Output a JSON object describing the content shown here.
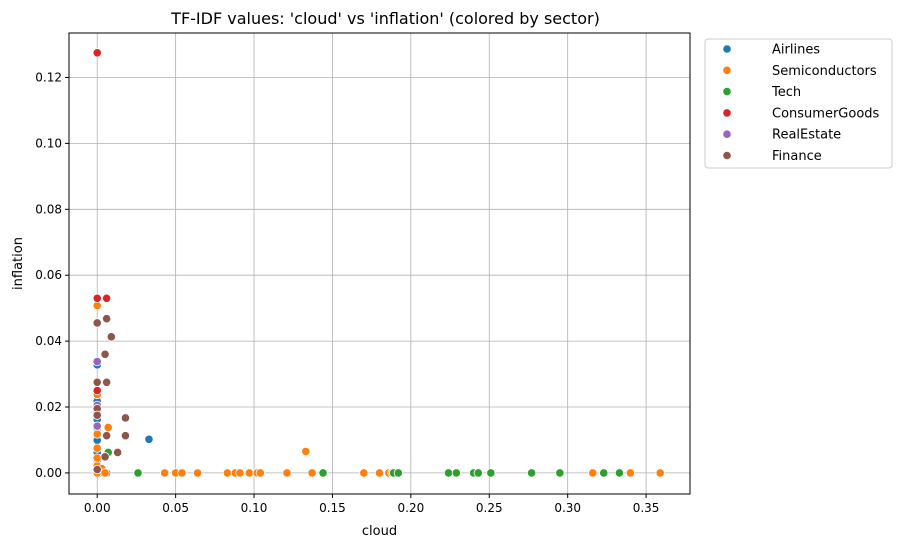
{
  "chart_data": {
    "type": "scatter",
    "title": "TF-IDF values: 'cloud' vs 'inflation' (colored by sector)",
    "xlabel": "cloud",
    "ylabel": "inflation",
    "xlim": [
      -0.018,
      0.378
    ],
    "ylim": [
      -0.0064,
      0.1335
    ],
    "xticks": [
      0.0,
      0.05,
      0.1,
      0.15,
      0.2,
      0.25,
      0.3,
      0.35
    ],
    "xtick_labels": [
      "0.00",
      "0.05",
      "0.10",
      "0.15",
      "0.20",
      "0.25",
      "0.30",
      "0.35"
    ],
    "yticks": [
      0.0,
      0.02,
      0.04,
      0.06,
      0.08,
      0.1,
      0.12
    ],
    "ytick_labels": [
      "0.00",
      "0.02",
      "0.04",
      "0.06",
      "0.08",
      "0.10",
      "0.12"
    ],
    "grid": true,
    "legend_position": "outside top-right",
    "series": [
      {
        "name": "Airlines",
        "color": "#1f77b4",
        "points": [
          [
            0.0,
            0.0
          ],
          [
            0.0,
            0.0
          ],
          [
            0.0,
            0.0
          ],
          [
            0.0,
            0.0021
          ],
          [
            0.0,
            0.0038
          ],
          [
            0.0,
            0.0062
          ],
          [
            0.0,
            0.0099
          ],
          [
            0.0,
            0.0135
          ],
          [
            0.0,
            0.0162
          ],
          [
            0.0,
            0.0218
          ],
          [
            0.0,
            0.0328
          ],
          [
            0.002,
            0.0
          ],
          [
            0.004,
            0.0
          ],
          [
            0.006,
            0.0
          ],
          [
            0.033,
            0.0102
          ]
        ]
      },
      {
        "name": "Semiconductors",
        "color": "#ff7f0e",
        "points": [
          [
            0.0,
            0.0
          ],
          [
            0.0,
            0.0022
          ],
          [
            0.0,
            0.0045
          ],
          [
            0.0,
            0.0075
          ],
          [
            0.0,
            0.0118
          ],
          [
            0.0,
            0.0238
          ],
          [
            0.0,
            0.0508
          ],
          [
            0.003,
            0.0013
          ],
          [
            0.005,
            0.0
          ],
          [
            0.007,
            0.0138
          ],
          [
            0.043,
            0.0
          ],
          [
            0.05,
            0.0
          ],
          [
            0.054,
            0.0
          ],
          [
            0.064,
            0.0
          ],
          [
            0.083,
            0.0
          ],
          [
            0.088,
            0.0
          ],
          [
            0.091,
            0.0
          ],
          [
            0.097,
            0.0
          ],
          [
            0.102,
            0.0
          ],
          [
            0.104,
            0.0
          ],
          [
            0.121,
            0.0
          ],
          [
            0.133,
            0.0065
          ],
          [
            0.137,
            0.0
          ],
          [
            0.17,
            0.0
          ],
          [
            0.18,
            0.0
          ],
          [
            0.186,
            0.0
          ],
          [
            0.188,
            0.0
          ],
          [
            0.316,
            0.0
          ],
          [
            0.34,
            0.0
          ],
          [
            0.359,
            0.0
          ]
        ]
      },
      {
        "name": "Tech",
        "color": "#2ca02c",
        "points": [
          [
            0.007,
            0.0062
          ],
          [
            0.026,
            0.0
          ],
          [
            0.144,
            0.0
          ],
          [
            0.189,
            0.0
          ],
          [
            0.192,
            0.0
          ],
          [
            0.224,
            0.0
          ],
          [
            0.229,
            0.0
          ],
          [
            0.24,
            0.0
          ],
          [
            0.243,
            0.0
          ],
          [
            0.251,
            0.0
          ],
          [
            0.277,
            0.0
          ],
          [
            0.295,
            0.0
          ],
          [
            0.323,
            0.0
          ],
          [
            0.333,
            0.0
          ]
        ]
      },
      {
        "name": "ConsumerGoods",
        "color": "#d62728",
        "points": [
          [
            0.0,
            0.1275
          ],
          [
            0.0,
            0.053
          ],
          [
            0.0,
            0.025
          ],
          [
            0.006,
            0.053
          ]
        ]
      },
      {
        "name": "RealEstate",
        "color": "#9467bd",
        "points": [
          [
            0.0,
            0.0338
          ],
          [
            0.0,
            0.0205
          ],
          [
            0.0,
            0.0185
          ],
          [
            0.0,
            0.0142
          ]
        ]
      },
      {
        "name": "Finance",
        "color": "#8c564b",
        "points": [
          [
            0.0,
            0.0455
          ],
          [
            0.0,
            0.0275
          ],
          [
            0.0,
            0.0195
          ],
          [
            0.0,
            0.0175
          ],
          [
            0.0,
            0.001
          ],
          [
            0.005,
            0.0049
          ],
          [
            0.005,
            0.036
          ],
          [
            0.006,
            0.0275
          ],
          [
            0.006,
            0.0113
          ],
          [
            0.006,
            0.0468
          ],
          [
            0.009,
            0.0413
          ],
          [
            0.013,
            0.0062
          ],
          [
            0.018,
            0.0113
          ],
          [
            0.018,
            0.0167
          ]
        ]
      }
    ]
  }
}
